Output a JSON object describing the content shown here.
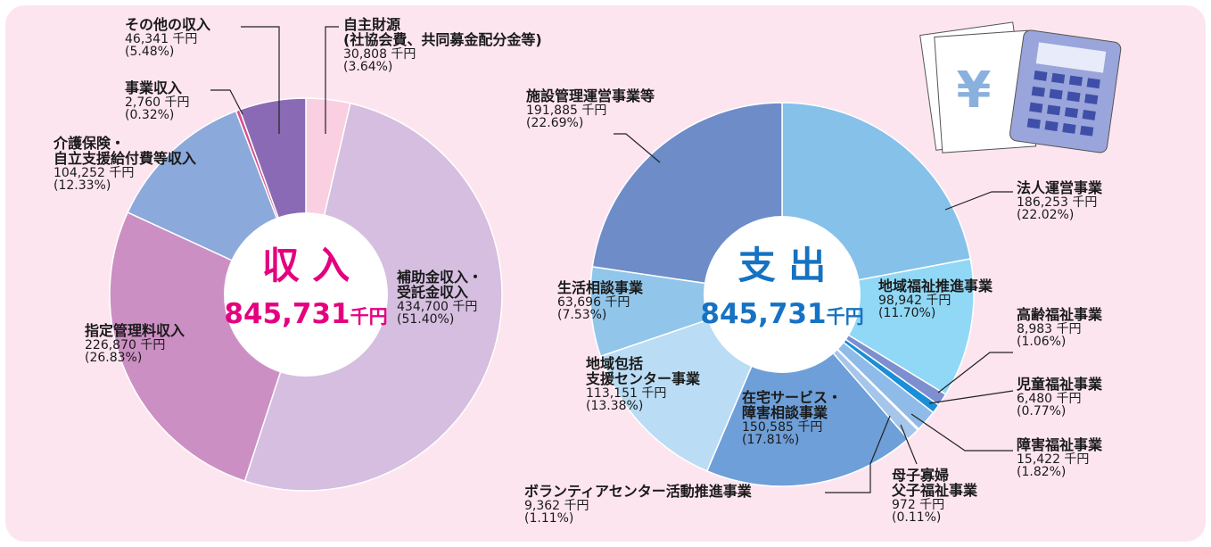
{
  "chart_data": [
    {
      "type": "pie",
      "center_title": "収 入",
      "total": "845,731",
      "total_unit": "千円",
      "title_color": "#e4007f",
      "categories": [
        "自主財源\n(社協会費、共同募金配分金等)",
        "補助金収入・\n受託金収入",
        "指定管理料収入",
        "介護保険・\n自立支援給付費等収入",
        "事業収入",
        "その他の収入"
      ],
      "values": [
        30808,
        434700,
        226870,
        104252,
        2760,
        46341
      ],
      "value_labels": [
        "30,808 千円",
        "434,700 千円",
        "226,870 千円",
        "104,252 千円",
        "2,760 千円",
        "46,341 千円"
      ],
      "percents": [
        3.64,
        51.4,
        26.83,
        12.33,
        0.32,
        5.48
      ],
      "percent_labels": [
        "(3.64%)",
        "(51.40%)",
        "(26.83%)",
        "(12.33%)",
        "(0.32%)",
        "(5.48%)"
      ],
      "colors": [
        "#f9cfe1",
        "#d5bee0",
        "#cc8fc3",
        "#8ba9da",
        "#d6508f",
        "#8a6ab4"
      ]
    },
    {
      "type": "pie",
      "center_title": "支 出",
      "total": "845,731",
      "total_unit": "千円",
      "title_color": "#1672c2",
      "categories": [
        "法人運営事業",
        "地域福祉推進事業",
        "高齢福祉事業",
        "児童福祉事業",
        "障害福祉事業",
        "母子寡婦\n父子福祉事業",
        "ボランティアセンター活動推進事業",
        "在宅サービス・\n障害相談事業",
        "地域包括\n支援センター事業",
        "生活相談事業",
        "施設管理運営事業等"
      ],
      "values": [
        186253,
        98942,
        8983,
        6480,
        15422,
        972,
        9362,
        150585,
        113151,
        63696,
        191885
      ],
      "value_labels": [
        "186,253 千円",
        "98,942 千円",
        "8,983 千円",
        "6,480 千円",
        "15,422 千円",
        "972 千円",
        "9,362 千円",
        "150,585 千円",
        "113,151 千円",
        "63,696 千円",
        "191,885 千円"
      ],
      "percents": [
        22.02,
        11.7,
        1.06,
        0.77,
        1.82,
        0.11,
        1.11,
        17.81,
        13.38,
        7.53,
        22.69
      ],
      "percent_labels": [
        "(22.02%)",
        "(11.70%)",
        "(1.06%)",
        "(0.77%)",
        "(1.82%)",
        "(0.11%)",
        "(1.11%)",
        "(17.81%)",
        "(13.38%)",
        "(7.53%)",
        "(22.69%)"
      ],
      "colors": [
        "#86c1ea",
        "#90d8f5",
        "#7d8fcf",
        "#1a8ed7",
        "#8fbbe8",
        "#aaa8d8",
        "#a6c5ea",
        "#6e9fd8",
        "#badcf5",
        "#92c5ea",
        "#6d8cc8"
      ]
    }
  ]
}
